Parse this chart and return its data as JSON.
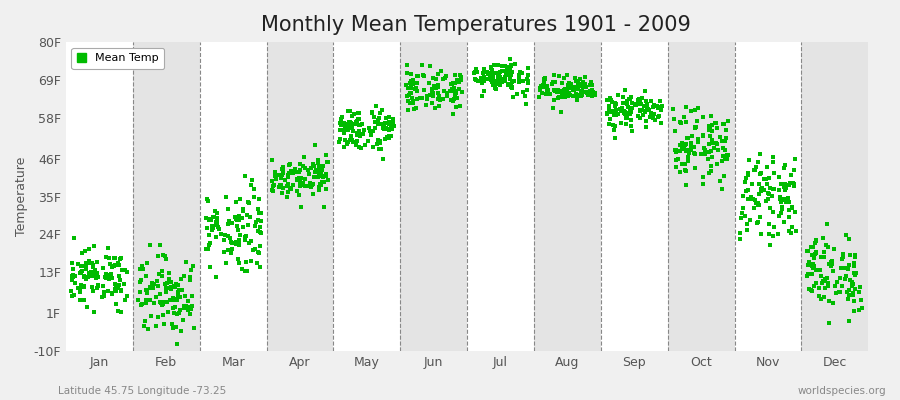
{
  "title": "Monthly Mean Temperatures 1901 - 2009",
  "ylabel": "Temperature",
  "xlabel_bottom_left": "Latitude 45.75 Longitude -73.25",
  "xlabel_bottom_right": "worldspecies.org",
  "ytick_labels": [
    "-10F",
    "1F",
    "13F",
    "24F",
    "35F",
    "46F",
    "58F",
    "69F",
    "80F"
  ],
  "ytick_values": [
    -10,
    1,
    13,
    24,
    35,
    46,
    58,
    69,
    80
  ],
  "months": [
    "Jan",
    "Feb",
    "Mar",
    "Apr",
    "May",
    "Jun",
    "Jul",
    "Aug",
    "Sep",
    "Oct",
    "Nov",
    "Dec"
  ],
  "ylim": [
    -10,
    80
  ],
  "xlim": [
    0.5,
    12.75
  ],
  "dot_color": "#00BB00",
  "dot_size": 5,
  "background_color": "#f0f0f0",
  "alt_band_color": "#e4e4e4",
  "grid_color": "#888888",
  "title_fontsize": 15,
  "axis_label_fontsize": 9,
  "tick_fontsize": 9,
  "legend_label": "Mean Temp",
  "month_temp_ranges": {
    "Jan": [
      3,
      20
    ],
    "Feb": [
      -5,
      18
    ],
    "Mar": [
      13,
      38
    ],
    "Apr": [
      35,
      47
    ],
    "May": [
      48,
      61
    ],
    "Jun": [
      60,
      72
    ],
    "Jul": [
      65,
      75
    ],
    "Aug": [
      62,
      70
    ],
    "Sep": [
      55,
      65
    ],
    "Oct": [
      40,
      60
    ],
    "Nov": [
      24,
      46
    ],
    "Dec": [
      1,
      24
    ]
  },
  "n_points": 109
}
